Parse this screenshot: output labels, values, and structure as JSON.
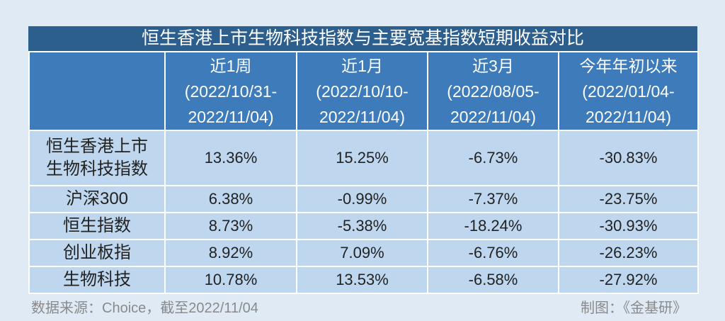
{
  "title": "恒生香港上市生物科技指数与主要宽基指数短期收益对比",
  "table": {
    "header": [
      [
        "近1周",
        "(2022/10/31-",
        "2022/11/04)"
      ],
      [
        "近1月",
        "(2022/10/10-",
        "2022/11/04)"
      ],
      [
        "近3月",
        "(2022/08/05-",
        "2022/11/04)"
      ],
      [
        "今年年初以来",
        "(2022/01/04-",
        "2022/11/04)"
      ]
    ],
    "rows": [
      [
        "恒生香港上市生物科技指数",
        "13.36%",
        "15.25%",
        "-6.73%",
        "-30.83%"
      ],
      [
        "沪深300",
        "6.38%",
        "-0.99%",
        "-7.37%",
        "-23.75%"
      ],
      [
        "恒生指数",
        "8.73%",
        "-5.38%",
        "-18.24%",
        "-30.93%"
      ],
      [
        "创业板指",
        "8.92%",
        "7.09%",
        "-6.76%",
        "-26.23%"
      ],
      [
        "生物科技",
        "10.78%",
        "13.53%",
        "-6.58%",
        "-27.92%"
      ]
    ]
  },
  "footer": {
    "source": "数据来源：Choice，截至2022/11/04",
    "credit": "制图：《金基研》"
  }
}
